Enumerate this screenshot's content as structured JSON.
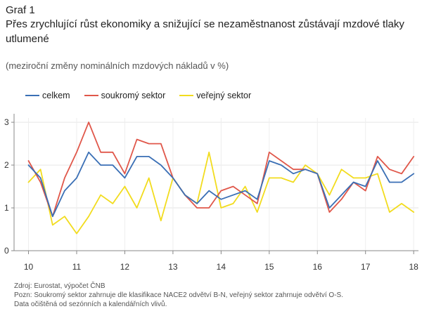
{
  "figure": {
    "label": "Graf 1",
    "title": "Přes zrychlující růst ekonomiky a snižující se nezaměstnanost zůstávají mzdové tlaky utlumené",
    "subtitle": "(meziroční změny nominálních mzdových nákladů v %)"
  },
  "legend": [
    {
      "label": "celkem",
      "color": "#3A6FB5"
    },
    {
      "label": "soukromý sektor",
      "color": "#E0574A"
    },
    {
      "label": "veřejný sektor",
      "color": "#F2DC1E"
    }
  ],
  "chart_data": {
    "type": "line",
    "title": "Přes zrychlující růst ekonomiky a snižující se nezaměstnanost zůstávají mzdové tlaky utlumené",
    "xlabel": "",
    "ylabel": "meziroční změny nominálních mzdových nákladů v %",
    "x": [
      10.0,
      10.25,
      10.5,
      10.75,
      11.0,
      11.25,
      11.5,
      11.75,
      12.0,
      12.25,
      12.5,
      12.75,
      13.0,
      13.25,
      13.5,
      13.75,
      14.0,
      14.25,
      14.5,
      14.75,
      15.0,
      15.25,
      15.5,
      15.75,
      16.0,
      16.25,
      16.5,
      16.75,
      17.0,
      17.25,
      17.5,
      17.75,
      18.0
    ],
    "xlim": [
      9.7,
      18.1
    ],
    "ylim": [
      0,
      3.1
    ],
    "x_ticks": [
      10,
      11,
      12,
      13,
      14,
      15,
      16,
      17,
      18
    ],
    "y_ticks": [
      0,
      1,
      2,
      3
    ],
    "series": [
      {
        "name": "celkem",
        "color": "#3A6FB5",
        "values": [
          2.0,
          1.7,
          0.8,
          1.4,
          1.7,
          2.3,
          2.0,
          2.0,
          1.7,
          2.2,
          2.2,
          2.0,
          1.7,
          1.3,
          1.1,
          1.4,
          1.2,
          1.3,
          1.4,
          1.2,
          2.1,
          2.0,
          1.8,
          1.9,
          1.8,
          1.0,
          1.3,
          1.6,
          1.5,
          2.1,
          1.6,
          1.6,
          1.8
        ]
      },
      {
        "name": "soukromý sektor",
        "color": "#E0574A",
        "values": [
          2.1,
          1.6,
          0.8,
          1.7,
          2.3,
          3.0,
          2.3,
          2.3,
          1.8,
          2.6,
          2.5,
          2.5,
          1.7,
          1.3,
          1.0,
          1.0,
          1.4,
          1.5,
          1.3,
          1.1,
          2.3,
          2.1,
          1.9,
          1.9,
          1.8,
          0.9,
          1.2,
          1.6,
          1.4,
          2.2,
          1.9,
          1.8,
          2.2
        ]
      },
      {
        "name": "veřejný sektor",
        "color": "#F2DC1E",
        "values": [
          1.6,
          1.9,
          0.6,
          0.8,
          0.4,
          0.8,
          1.3,
          1.1,
          1.5,
          1.0,
          1.7,
          0.7,
          1.7,
          1.3,
          1.1,
          2.3,
          1.0,
          1.1,
          1.5,
          0.9,
          1.7,
          1.7,
          1.6,
          2.0,
          1.8,
          1.3,
          1.9,
          1.7,
          1.7,
          1.8,
          0.9,
          1.1,
          0.9
        ]
      }
    ]
  },
  "notes": {
    "source": "Zdroj: Eurostat, výpočet ČNB",
    "note": "Pozn: Soukromý sektor zahrnuje dle klasifikace NACE2 odvětví B-N, veřejný sektor zahrnuje odvětví O-S.",
    "adjustment": "Data očištěná od sezónních a kalendářních vlivů."
  }
}
